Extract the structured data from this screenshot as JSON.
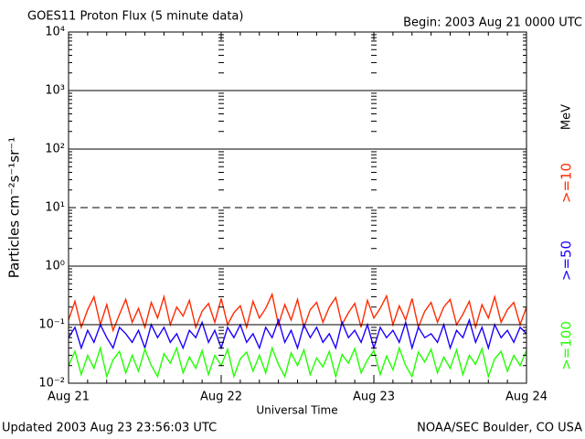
{
  "chart_data": {
    "type": "line",
    "title": "GOES11 Proton Flux (5 minute data)",
    "subtitle": "Begin: 2003 Aug 21 0000 UTC",
    "x_label": "Universal Time",
    "y_label": "Particles cm⁻²s⁻¹sr⁻¹",
    "units_label": "MeV",
    "footer_left": "Updated 2003 Aug 23 23:56:03 UTC",
    "footer_right": "NOAA/SEC Boulder, CO USA",
    "log_scale": true,
    "grid": true,
    "minor_ticks": true,
    "dashed_line": 10,
    "xlim": [
      0,
      72
    ],
    "xticks": [
      {
        "value": 0,
        "label": "Aug 21"
      },
      {
        "value": 24,
        "label": "Aug 22"
      },
      {
        "value": 48,
        "label": "Aug 23"
      },
      {
        "value": 72,
        "label": "Aug 24"
      }
    ],
    "ylim": [
      0.01,
      10000
    ],
    "yticks": [
      {
        "value": 0.01,
        "label": "10⁻²"
      },
      {
        "value": 0.1,
        "label": "10⁻¹"
      },
      {
        "value": 1,
        "label": "10⁰"
      },
      {
        "value": 10,
        "label": "10¹"
      },
      {
        "value": 100,
        "label": "10²"
      },
      {
        "value": 1000,
        "label": "10³"
      },
      {
        "value": 10000,
        "label": "10⁴"
      }
    ],
    "x": [
      0,
      1,
      2,
      3,
      4,
      5,
      6,
      7,
      8,
      9,
      10,
      11,
      12,
      13,
      14,
      15,
      16,
      17,
      18,
      19,
      20,
      21,
      22,
      23,
      24,
      25,
      26,
      27,
      28,
      29,
      30,
      31,
      32,
      33,
      34,
      35,
      36,
      37,
      38,
      39,
      40,
      41,
      42,
      43,
      44,
      45,
      46,
      47,
      48,
      49,
      50,
      51,
      52,
      53,
      54,
      55,
      56,
      57,
      58,
      59,
      60,
      61,
      62,
      63,
      64,
      65,
      66,
      67,
      68,
      69,
      70,
      71,
      72
    ],
    "series": [
      {
        "name": ">=10",
        "color": "#ff2a00",
        "values": [
          0.12,
          0.25,
          0.09,
          0.18,
          0.3,
          0.1,
          0.22,
          0.08,
          0.15,
          0.27,
          0.11,
          0.19,
          0.09,
          0.24,
          0.13,
          0.3,
          0.1,
          0.2,
          0.14,
          0.26,
          0.09,
          0.17,
          0.23,
          0.11,
          0.28,
          0.1,
          0.16,
          0.21,
          0.09,
          0.25,
          0.13,
          0.19,
          0.33,
          0.1,
          0.22,
          0.12,
          0.27,
          0.09,
          0.18,
          0.24,
          0.11,
          0.2,
          0.29,
          0.1,
          0.16,
          0.23,
          0.09,
          0.26,
          0.13,
          0.19,
          0.31,
          0.1,
          0.21,
          0.12,
          0.28,
          0.09,
          0.17,
          0.24,
          0.11,
          0.2,
          0.27,
          0.1,
          0.15,
          0.25,
          0.09,
          0.22,
          0.13,
          0.3,
          0.11,
          0.18,
          0.24,
          0.1,
          0.2
        ]
      },
      {
        "name": ">=50",
        "color": "#1a00ff",
        "values": [
          0.06,
          0.09,
          0.04,
          0.08,
          0.05,
          0.1,
          0.06,
          0.04,
          0.09,
          0.07,
          0.05,
          0.08,
          0.04,
          0.1,
          0.06,
          0.09,
          0.05,
          0.07,
          0.04,
          0.08,
          0.06,
          0.11,
          0.05,
          0.08,
          0.04,
          0.09,
          0.06,
          0.1,
          0.05,
          0.07,
          0.04,
          0.09,
          0.06,
          0.12,
          0.05,
          0.08,
          0.04,
          0.1,
          0.06,
          0.09,
          0.05,
          0.07,
          0.04,
          0.11,
          0.06,
          0.08,
          0.05,
          0.1,
          0.04,
          0.09,
          0.06,
          0.08,
          0.05,
          0.11,
          0.04,
          0.09,
          0.06,
          0.07,
          0.05,
          0.1,
          0.04,
          0.08,
          0.06,
          0.12,
          0.05,
          0.09,
          0.04,
          0.1,
          0.06,
          0.08,
          0.05,
          0.09,
          0.07
        ]
      },
      {
        "name": ">=100",
        "color": "#22ff00",
        "values": [
          0.02,
          0.035,
          0.014,
          0.03,
          0.018,
          0.04,
          0.013,
          0.025,
          0.035,
          0.015,
          0.03,
          0.016,
          0.038,
          0.02,
          0.013,
          0.032,
          0.022,
          0.04,
          0.015,
          0.028,
          0.018,
          0.036,
          0.014,
          0.03,
          0.02,
          0.038,
          0.013,
          0.026,
          0.034,
          0.016,
          0.03,
          0.015,
          0.04,
          0.021,
          0.013,
          0.033,
          0.02,
          0.037,
          0.014,
          0.027,
          0.019,
          0.035,
          0.013,
          0.031,
          0.022,
          0.039,
          0.015,
          0.025,
          0.036,
          0.014,
          0.029,
          0.017,
          0.04,
          0.02,
          0.013,
          0.034,
          0.023,
          0.038,
          0.015,
          0.028,
          0.018,
          0.037,
          0.014,
          0.03,
          0.021,
          0.039,
          0.013,
          0.026,
          0.035,
          0.016,
          0.03,
          0.02,
          0.036
        ]
      }
    ]
  }
}
